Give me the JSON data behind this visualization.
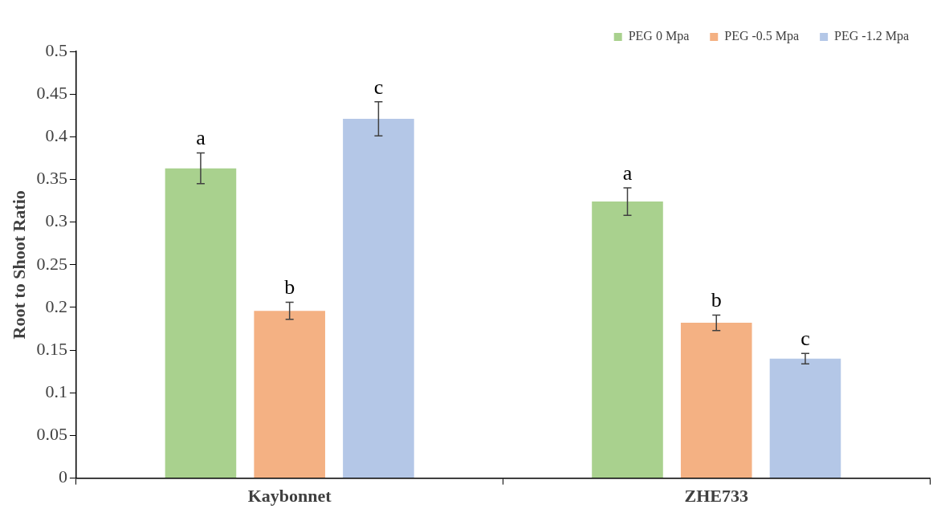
{
  "chart_data": {
    "type": "bar",
    "ylabel": "Root to Shoot Ratio",
    "categories": [
      "Kaybonnet",
      "ZHE733"
    ],
    "series": [
      {
        "name": "PEG 0 Mpa",
        "color": "#a9d18e",
        "values": [
          0.363,
          0.324
        ],
        "errors": [
          0.018,
          0.016
        ],
        "value_labels": [
          "a",
          "a"
        ]
      },
      {
        "name": "PEG -0.5 Mpa",
        "color": "#f4b183",
        "values": [
          0.196,
          0.182
        ],
        "errors": [
          0.01,
          0.009
        ],
        "value_labels": [
          "b",
          "b"
        ]
      },
      {
        "name": "PEG -1.2 Mpa",
        "color": "#b4c7e7",
        "values": [
          0.421,
          0.14
        ],
        "errors": [
          0.02,
          0.006
        ],
        "value_labels": [
          "c",
          "c"
        ]
      }
    ],
    "ylim": [
      0,
      0.5
    ],
    "yticks": [
      0,
      0.05,
      0.1,
      0.15,
      0.2,
      0.25,
      0.3,
      0.35,
      0.4,
      0.45,
      0.5
    ],
    "grid": false,
    "legend": "top right"
  }
}
